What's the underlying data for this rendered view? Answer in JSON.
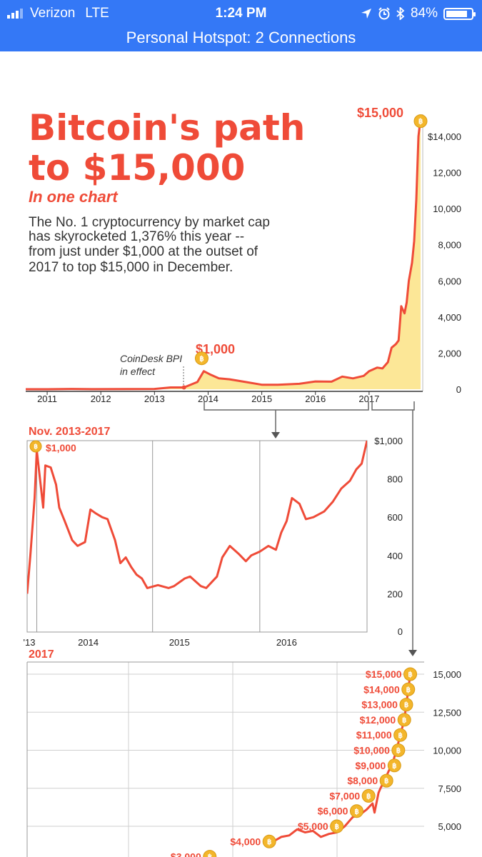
{
  "status_bar": {
    "carrier": "Verizon",
    "network": "LTE",
    "time": "1:24 PM",
    "battery": "84%",
    "battery_level": 0.84,
    "hotspot": "Personal Hotspot: 2 Connections"
  },
  "colors": {
    "accent": "#ef4b38",
    "area_fill": "#fce797",
    "coin": "#f3b62b",
    "grid": "#cccccc",
    "status_bar": "#3478f6"
  },
  "chart_data": [
    {
      "type": "area",
      "title": "Bitcoin's path to $15,000",
      "subtitle": "In one chart",
      "description": [
        "The No. 1 cryptocurrency by market cap",
        "has skyrocketed 1,376% this year --",
        "from just under $1,000 at the outset of",
        "2017 to top $15,000 in December."
      ],
      "x_tick_labels": [
        "2011",
        "2012",
        "2013",
        "2014",
        "2015",
        "2016",
        "2017"
      ],
      "y_tick_labels": [
        "$14,000",
        "12,000",
        "10,000",
        "8,000",
        "6,000",
        "4,000",
        "2,000",
        "0"
      ],
      "y_ticks": [
        14000,
        12000,
        10000,
        8000,
        6000,
        4000,
        2000,
        0
      ],
      "xlim": [
        2010.6,
        2018.0
      ],
      "ylim": [
        0,
        15500
      ],
      "annotations": {
        "peak_label": "$15,000",
        "peak_point": [
          2017.96,
          15000
        ],
        "peak_2013_label": "$1,000",
        "peak_2013_point": [
          2013.92,
          1000
        ],
        "bpi_note": [
          "CoinDesk BPI",
          "in effect"
        ],
        "bpi_point": [
          2013.55,
          100
        ]
      },
      "series": [
        {
          "x": [
            2010.6,
            2011.0,
            2011.45,
            2011.9,
            2012.5,
            2013.0,
            2013.3,
            2013.55,
            2013.8,
            2013.92,
            2014.05,
            2014.2,
            2014.4,
            2014.7,
            2015.0,
            2015.3,
            2015.7,
            2016.0,
            2016.3,
            2016.5,
            2016.7,
            2016.9,
            2017.0,
            2017.15,
            2017.25,
            2017.35,
            2017.42,
            2017.5,
            2017.55,
            2017.6,
            2017.66,
            2017.7,
            2017.74,
            2017.8,
            2017.84,
            2017.88,
            2017.92,
            2017.96
          ],
          "values": [
            0,
            1,
            15,
            5,
            10,
            15,
            100,
            100,
            400,
            1000,
            800,
            600,
            550,
            400,
            250,
            250,
            300,
            430,
            420,
            700,
            600,
            740,
            1000,
            1200,
            1150,
            1500,
            2300,
            2500,
            2700,
            4600,
            4200,
            4800,
            6000,
            7000,
            8200,
            10500,
            14000,
            15000
          ]
        }
      ]
    },
    {
      "type": "line",
      "title": "Nov. 2013-2017",
      "x_tick_labels": [
        "'13",
        "2014",
        "2015",
        "2016"
      ],
      "y_tick_labels": [
        "$1,000",
        "800",
        "600",
        "400",
        "200",
        "0"
      ],
      "y_ticks": [
        1000,
        800,
        600,
        400,
        200,
        0
      ],
      "xlim": [
        2013.83,
        2017.0
      ],
      "ylim": [
        0,
        1000
      ],
      "annotations": {
        "peak_label": "$1,000",
        "peak_point": [
          2013.92,
          950
        ]
      },
      "series": [
        {
          "x": [
            2013.83,
            2013.86,
            2013.9,
            2013.92,
            2013.95,
            2013.98,
            2014.0,
            2014.05,
            2014.1,
            2014.13,
            2014.18,
            2014.25,
            2014.3,
            2014.37,
            2014.42,
            2014.47,
            2014.53,
            2014.58,
            2014.65,
            2014.7,
            2014.75,
            2014.8,
            2014.85,
            2014.9,
            2014.95,
            2015.05,
            2015.15,
            2015.2,
            2015.3,
            2015.35,
            2015.45,
            2015.5,
            2015.55,
            2015.6,
            2015.65,
            2015.72,
            2015.8,
            2015.87,
            2015.92,
            2016.0,
            2016.08,
            2016.15,
            2016.2,
            2016.25,
            2016.3,
            2016.37,
            2016.43,
            2016.5,
            2016.6,
            2016.68,
            2016.76,
            2016.84,
            2016.9,
            2016.95,
            2017.0
          ],
          "values": [
            200,
            400,
            700,
            950,
            800,
            650,
            870,
            860,
            770,
            650,
            580,
            480,
            450,
            470,
            640,
            620,
            600,
            590,
            480,
            360,
            390,
            340,
            300,
            280,
            230,
            245,
            230,
            240,
            280,
            290,
            240,
            230,
            260,
            290,
            390,
            450,
            410,
            370,
            400,
            420,
            450,
            430,
            520,
            580,
            700,
            670,
            590,
            600,
            630,
            680,
            750,
            790,
            850,
            880,
            1000
          ]
        }
      ]
    },
    {
      "type": "line",
      "title": "2017",
      "y_tick_labels": [
        "15,000",
        "12,500",
        "10,000",
        "7,500",
        "5,000"
      ],
      "y_ticks": [
        15000,
        12500,
        10000,
        7500,
        5000
      ],
      "xlim": [
        2017.0,
        2018.0
      ],
      "ylim": [
        4100,
        15500
      ],
      "milestones": [
        {
          "label": "$3,000",
          "x": 2017.46,
          "y": 3000
        },
        {
          "label": "$4,000",
          "x": 2017.61,
          "y": 4000
        },
        {
          "label": "$5,000",
          "x": 2017.78,
          "y": 5000
        },
        {
          "label": "$6,000",
          "x": 2017.83,
          "y": 6000
        },
        {
          "label": "$7,000",
          "x": 2017.86,
          "y": 7000
        },
        {
          "label": "$8,000",
          "x": 2017.905,
          "y": 8000
        },
        {
          "label": "$9,000",
          "x": 2017.925,
          "y": 9000
        },
        {
          "label": "$10,000",
          "x": 2017.935,
          "y": 10000
        },
        {
          "label": "$11,000",
          "x": 2017.94,
          "y": 11000
        },
        {
          "label": "$12,000",
          "x": 2017.95,
          "y": 12000
        },
        {
          "label": "$13,000",
          "x": 2017.955,
          "y": 13000
        },
        {
          "label": "$14,000",
          "x": 2017.96,
          "y": 14000
        },
        {
          "label": "$15,000",
          "x": 2017.965,
          "y": 15000
        }
      ],
      "series": [
        {
          "x": [
            2017.62,
            2017.64,
            2017.66,
            2017.68,
            2017.7,
            2017.72,
            2017.74,
            2017.76,
            2017.78,
            2017.8,
            2017.82,
            2017.84,
            2017.855,
            2017.87,
            2017.875,
            2017.885,
            2017.89,
            2017.9,
            2017.91,
            2017.92,
            2017.93,
            2017.94,
            2017.95,
            2017.96,
            2017.965
          ],
          "values": [
            4000,
            4300,
            4400,
            4800,
            4600,
            4700,
            4300,
            4500,
            4600,
            5000,
            5600,
            5800,
            6100,
            6500,
            5900,
            7200,
            7500,
            8000,
            8600,
            9100,
            10000,
            11000,
            12000,
            14000,
            15000
          ]
        }
      ]
    }
  ]
}
